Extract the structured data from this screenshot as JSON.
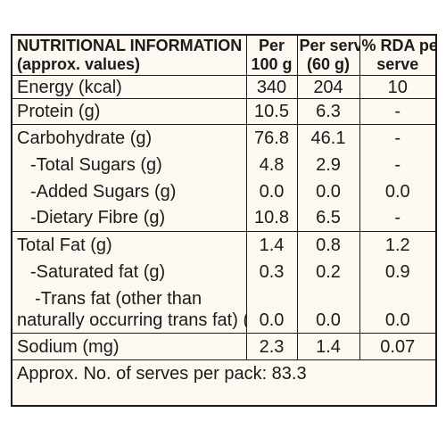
{
  "header": {
    "title_line1": "NUTRITIONAL INFORMATION",
    "title_line2": "(approx. values)",
    "col_per100_line1": "Per",
    "col_per100_line2": "100 g",
    "col_perserve_line1": "Per serve",
    "col_perserve_line2": "(60 g)",
    "col_rda_line1": "% RDA per",
    "col_rda_line2": "serve"
  },
  "rows": [
    {
      "label": "Energy (kcal)",
      "per100": "340",
      "perserve": "204",
      "rda": "10"
    },
    {
      "label": "Protein (g)",
      "per100": "10.5",
      "perserve": "6.3",
      "rda": "-"
    },
    {
      "label": "Carbohydrate (g)",
      "per100": "76.8",
      "perserve": "46.1",
      "rda": "-"
    },
    {
      "label": "-Total Sugars (g)",
      "per100": "4.8",
      "perserve": "2.9",
      "rda": "-"
    },
    {
      "label": "-Added Sugars (g)",
      "per100": "0.0",
      "perserve": "0.0",
      "rda": "0.0"
    },
    {
      "label": "-Dietary Fibre (g)",
      "per100": "10.8",
      "perserve": "6.5",
      "rda": "-"
    },
    {
      "label": "Total Fat (g)",
      "per100": "1.4",
      "perserve": "0.8",
      "rda": "1.2"
    },
    {
      "label": "-Saturated fat  (g)",
      "per100": "0.3",
      "perserve": "0.2",
      "rda": "0.9"
    },
    {
      "label_line1": "-Trans fat (other than",
      "label_line2": "naturally occurring trans fat) (g)",
      "per100": "0.0",
      "perserve": "0.0",
      "rda": "0.0"
    },
    {
      "label": "Sodium (mg)",
      "per100": "2.3",
      "perserve": "1.4",
      "rda": "0.07"
    }
  ],
  "footer": "Approx. No. of serves per pack: 83.3"
}
